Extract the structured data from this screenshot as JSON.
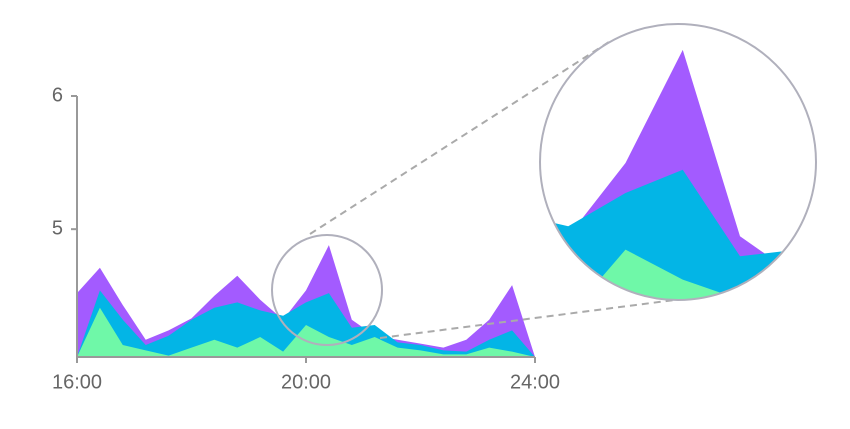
{
  "chart_data": {
    "type": "area",
    "x": [
      16,
      16.4,
      16.8,
      17.2,
      17.6,
      18,
      18.4,
      18.8,
      19.2,
      19.6,
      20,
      20.4,
      20.8,
      21.2,
      21.6,
      22,
      22.4,
      22.8,
      23.2,
      23.6,
      24
    ],
    "series": [
      {
        "color": "#a35bff",
        "values": [
          4.52,
          4.71,
          4.43,
          4.17,
          4.24,
          4.33,
          4.5,
          4.65,
          4.47,
          4.32,
          4.54,
          4.88,
          4.32,
          4.2,
          4.17,
          4.14,
          4.11,
          4.17,
          4.32,
          4.58,
          4.04
        ]
      },
      {
        "color": "#03b5e6",
        "values": [
          4.04,
          4.54,
          4.32,
          4.13,
          4.2,
          4.32,
          4.41,
          4.45,
          4.39,
          4.35,
          4.45,
          4.52,
          4.26,
          4.28,
          4.15,
          4.13,
          4.09,
          4.08,
          4.17,
          4.24,
          4.04
        ]
      },
      {
        "color": "#6ff8a8",
        "values": [
          4.04,
          4.41,
          4.13,
          4.09,
          4.05,
          4.11,
          4.17,
          4.11,
          4.19,
          4.08,
          4.28,
          4.19,
          4.13,
          4.19,
          4.11,
          4.09,
          4.06,
          4.06,
          4.11,
          4.08,
          4.04
        ]
      }
    ],
    "xlim": [
      16,
      24
    ],
    "ylim": [
      4.04,
      6
    ],
    "xticks": [
      {
        "value": 16,
        "label": "16:00"
      },
      {
        "value": 20,
        "label": "20:00"
      },
      {
        "value": 24,
        "label": "24:00"
      }
    ],
    "yticks": [
      5,
      6
    ]
  }
}
